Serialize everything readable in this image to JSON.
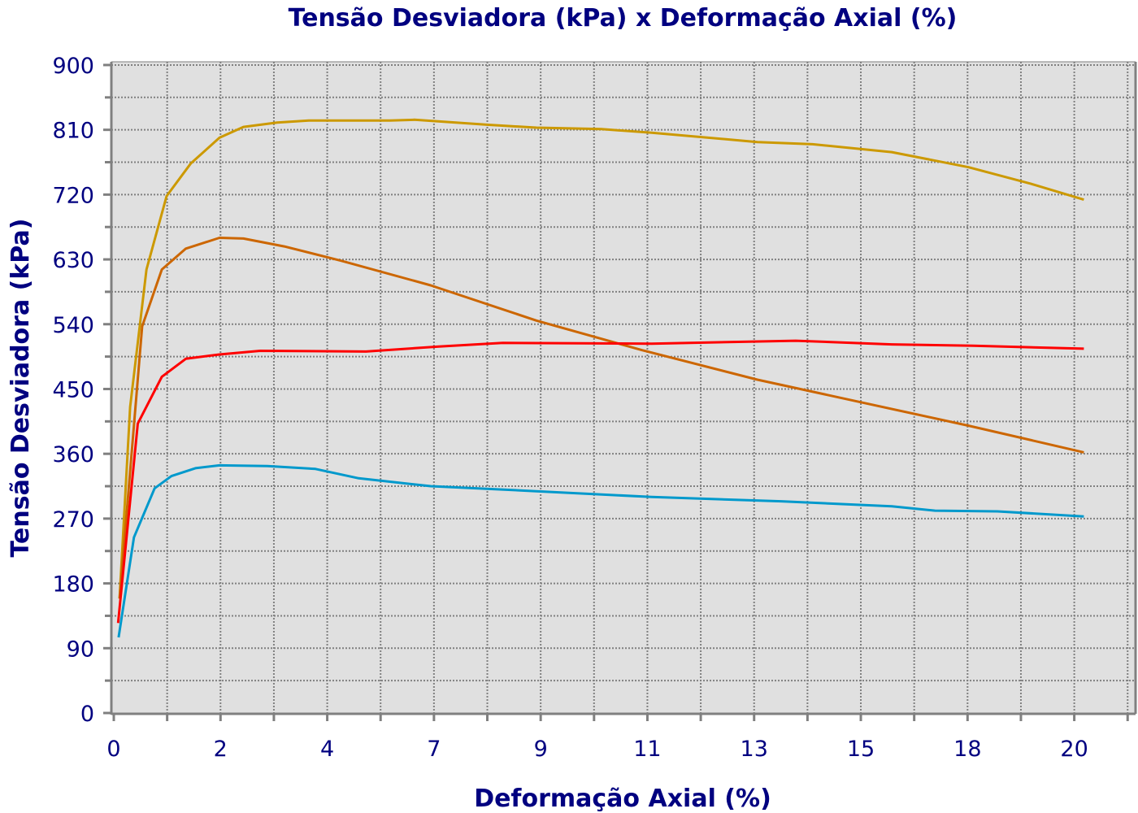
{
  "chart_data": {
    "type": "line",
    "title": "Tensão Desviadora (kPa) x Deformação Axial (%)",
    "xlabel": "Deformação Axial (%)",
    "ylabel": "Tensão Desviadora (kPa)",
    "xlim": [
      0,
      21.27
    ],
    "ylim": [
      0,
      900
    ],
    "x_tick_values": [
      0,
      2.222,
      4.444,
      6.667,
      8.889,
      11.111,
      13.333,
      15.556,
      17.778,
      20
    ],
    "x_tick_labels": [
      "0",
      "2",
      "4",
      "7",
      "9",
      "11",
      "13",
      "15",
      "18",
      "20"
    ],
    "y_tick_labels": [
      "0",
      "90",
      "180",
      "270",
      "360",
      "450",
      "540",
      "630",
      "720",
      "810",
      "900"
    ],
    "y_tick_values": [
      0,
      90,
      180,
      270,
      360,
      450,
      540,
      630,
      720,
      810,
      900
    ],
    "grid": true,
    "background": "#e0e0e0",
    "axis_color": "#808080",
    "text_color": "#000080",
    "series": [
      {
        "color": "#cc9900",
        "points": [
          [
            0.12,
            159
          ],
          [
            0.34,
            425
          ],
          [
            0.68,
            616
          ],
          [
            1.1,
            718
          ],
          [
            1.6,
            763
          ],
          [
            2.2,
            799
          ],
          [
            2.7,
            814
          ],
          [
            3.4,
            820
          ],
          [
            4.06,
            823
          ],
          [
            5.75,
            823
          ],
          [
            6.26,
            824
          ],
          [
            7.8,
            817
          ],
          [
            8.8,
            813
          ],
          [
            10.15,
            811
          ],
          [
            11.2,
            806
          ],
          [
            13.4,
            793
          ],
          [
            14.55,
            790
          ],
          [
            16.2,
            779
          ],
          [
            17.8,
            758
          ],
          [
            19.1,
            735
          ],
          [
            20.2,
            713
          ]
        ]
      },
      {
        "color": "#cc6600",
        "points": [
          [
            0.12,
            159
          ],
          [
            0.59,
            537
          ],
          [
            1.0,
            616
          ],
          [
            1.5,
            645
          ],
          [
            2.2,
            660
          ],
          [
            2.7,
            659
          ],
          [
            3.55,
            648
          ],
          [
            4.74,
            628
          ],
          [
            6.6,
            594
          ],
          [
            8.8,
            545
          ],
          [
            11.0,
            504
          ],
          [
            13.4,
            463
          ],
          [
            15.6,
            431
          ],
          [
            17.8,
            399
          ],
          [
            20.2,
            362
          ]
        ]
      },
      {
        "color": "#ff0000",
        "points": [
          [
            0.09,
            125
          ],
          [
            0.5,
            402
          ],
          [
            1.0,
            467
          ],
          [
            1.5,
            492
          ],
          [
            2.2,
            498
          ],
          [
            3.05,
            503
          ],
          [
            5.25,
            502
          ],
          [
            6.77,
            509
          ],
          [
            8.1,
            514
          ],
          [
            11.2,
            513
          ],
          [
            14.2,
            517
          ],
          [
            16.2,
            512
          ],
          [
            17.9,
            510
          ],
          [
            20.2,
            506
          ]
        ]
      },
      {
        "color": "#0099cc",
        "points": [
          [
            0.1,
            105
          ],
          [
            0.42,
            244
          ],
          [
            0.85,
            312
          ],
          [
            1.2,
            329
          ],
          [
            1.7,
            340
          ],
          [
            2.2,
            344
          ],
          [
            3.2,
            343
          ],
          [
            4.2,
            339
          ],
          [
            5.1,
            326
          ],
          [
            6.6,
            315
          ],
          [
            8.8,
            308
          ],
          [
            11.2,
            300
          ],
          [
            13.9,
            294
          ],
          [
            16.2,
            287
          ],
          [
            17.1,
            281
          ],
          [
            18.4,
            280
          ],
          [
            20.2,
            273
          ]
        ]
      }
    ]
  }
}
